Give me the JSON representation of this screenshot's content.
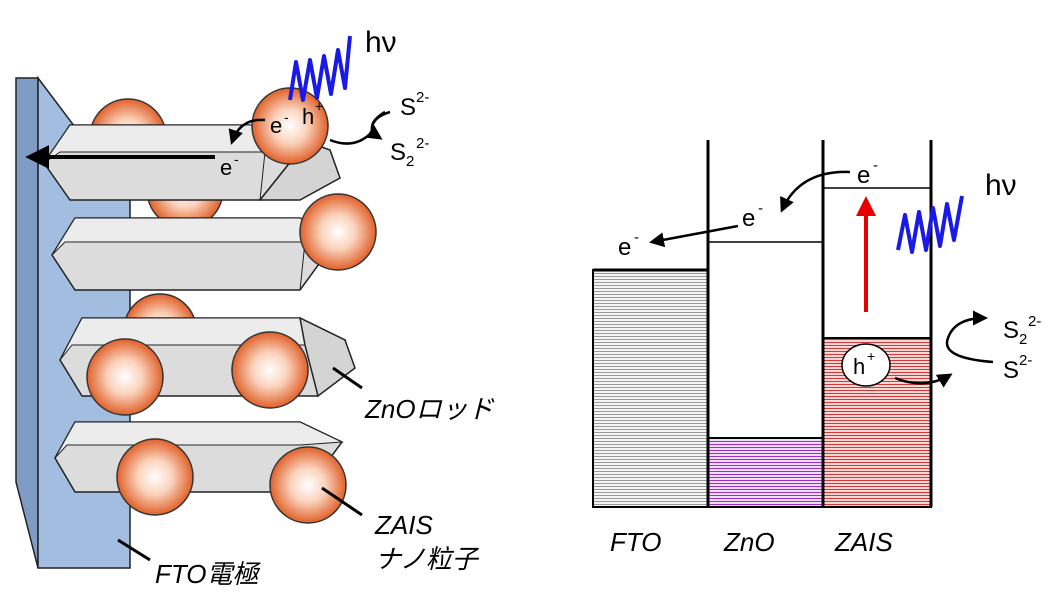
{
  "labels": {
    "hv": "hν",
    "electron": "e",
    "hole": "h",
    "minus": "-",
    "plus": "+",
    "sulfide_base": "S",
    "sulfide_charge": "2-",
    "disulfide_sub": "2",
    "fto": "FTO",
    "zno": "ZnO",
    "zais": "ZAIS",
    "zno_rod": "ZnOロッド",
    "zais_np_line1": "ZAIS",
    "zais_np_line2": "ナノ粒子",
    "fto_electrode": "FTO電極"
  },
  "colors": {
    "electrode_face": "#a3bde0",
    "electrode_dark": "#7f9cc4",
    "rod_fill": "#dcdcdc",
    "rod_top": "#ececec",
    "particle_outer": "#e0612a",
    "particle_inner": "#ffffff",
    "light_wave": "#1a1ae6",
    "excitation_arrow": "#e60000",
    "fto_band": "#9a9a9a",
    "zno_band": "#9b30c8",
    "zais_band": "#d03a3a"
  }
}
